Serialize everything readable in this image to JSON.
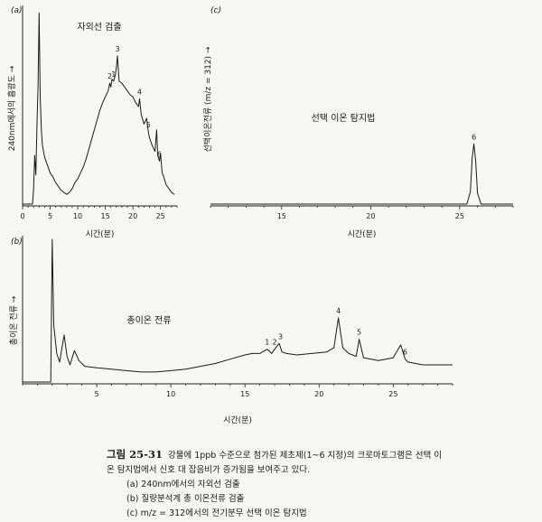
{
  "chart_data": [
    {
      "panel": "(a)",
      "type": "line",
      "title": "자외선 검출",
      "xlabel": "시간(분)",
      "ylabel": "240nm에서의 흡광도 →",
      "xlim": [
        0,
        28
      ],
      "xticks": [
        0,
        5,
        10,
        15,
        20,
        25
      ],
      "y_scale": "arbitrary",
      "grid": false,
      "x": [
        0,
        1.8,
        2.0,
        2.2,
        2.4,
        2.6,
        2.8,
        3.0,
        3.2,
        3.4,
        3.6,
        4.0,
        4.5,
        5.0,
        5.5,
        6.0,
        6.5,
        7.0,
        7.5,
        8.0,
        8.5,
        9.0,
        9.5,
        10.0,
        10.5,
        11.0,
        11.5,
        12.0,
        12.5,
        13.0,
        13.5,
        14.0,
        14.5,
        15.0,
        15.5,
        15.8,
        16.0,
        16.2,
        16.5,
        16.8,
        17.0,
        17.2,
        17.5,
        18.0,
        18.5,
        19.0,
        19.5,
        20.0,
        20.5,
        21.0,
        21.2,
        21.5,
        22.0,
        22.5,
        22.8,
        23.0,
        23.5,
        24.0,
        24.3,
        24.5,
        24.8,
        25.0,
        25.3,
        25.6,
        26.0,
        26.5,
        27.0,
        27.5
      ],
      "y": [
        0,
        0,
        8,
        25,
        15,
        40,
        60,
        98,
        55,
        38,
        30,
        24,
        20,
        16,
        14,
        11,
        9,
        7,
        6,
        5,
        6,
        8,
        11,
        13,
        16,
        19,
        23,
        28,
        33,
        38,
        43,
        48,
        52,
        55,
        58,
        62,
        60,
        64,
        63,
        66,
        70,
        76,
        63,
        62,
        60,
        58,
        56,
        55,
        52,
        50,
        54,
        46,
        41,
        44,
        37,
        34,
        30,
        27,
        38,
        25,
        22,
        26,
        16,
        14,
        10,
        8,
        6,
        5
      ],
      "peak_labels": [
        {
          "label": "1",
          "x": 16.5
        },
        {
          "label": "2",
          "x": 15.8
        },
        {
          "label": "3",
          "x": 17.2
        },
        {
          "label": "4",
          "x": 21.2
        },
        {
          "label": "5",
          "x": 22.8
        },
        {
          "label": "6",
          "x": 24.8
        }
      ]
    },
    {
      "panel": "(c)",
      "type": "line",
      "title": "선택 이온 탐지법",
      "xlabel": "시간(분)",
      "ylabel": "선택이온전류 (m/z = 312) →",
      "xlim": [
        11,
        28
      ],
      "xticks": [
        15,
        20,
        25
      ],
      "y_scale": "arbitrary",
      "grid": false,
      "x": [
        11,
        25.4,
        25.6,
        25.7,
        25.8,
        25.9,
        26.0,
        26.2,
        28
      ],
      "y": [
        0,
        0,
        20,
        75,
        98,
        70,
        18,
        0,
        0
      ],
      "peak_labels": [
        {
          "label": "6",
          "x": 25.8
        }
      ]
    },
    {
      "panel": "(b)",
      "type": "line",
      "title": "총이온 전류",
      "xlabel": "시간(분)",
      "ylabel": "총이온 전류 →",
      "xlim": [
        0,
        29
      ],
      "xticks": [
        5,
        10,
        15,
        20,
        25
      ],
      "y_scale": "arbitrary",
      "grid": false,
      "x": [
        0,
        1.9,
        2.0,
        2.1,
        2.3,
        2.5,
        2.8,
        3.0,
        3.2,
        3.5,
        3.8,
        4.2,
        5.0,
        6.0,
        7.0,
        8.0,
        9.0,
        10.0,
        11.0,
        12.0,
        13.0,
        14.0,
        15.0,
        15.5,
        16.0,
        16.5,
        16.8,
        17.0,
        17.3,
        17.5,
        17.8,
        18.5,
        19.5,
        20.5,
        21.0,
        21.3,
        21.6,
        22.0,
        22.5,
        22.7,
        23.0,
        24.0,
        25.0,
        25.5,
        25.8,
        26.0,
        26.5,
        27.0,
        28.0,
        29.0
      ],
      "y": [
        0,
        0,
        100,
        40,
        20,
        14,
        33,
        18,
        12,
        22,
        15,
        11,
        10,
        9,
        8,
        7,
        7,
        8,
        9,
        11,
        13,
        16,
        19,
        20,
        20,
        23,
        20,
        23,
        27,
        21,
        20,
        19,
        20,
        21,
        24,
        45,
        24,
        20,
        18,
        30,
        17,
        15,
        17,
        26,
        16,
        14,
        13,
        12,
        12,
        12
      ],
      "peak_labels": [
        {
          "label": "1",
          "x": 16.5
        },
        {
          "label": "2",
          "x": 17.0
        },
        {
          "label": "3",
          "x": 17.4
        },
        {
          "label": "4",
          "x": 21.3
        },
        {
          "label": "5",
          "x": 22.7
        },
        {
          "label": "6",
          "x": 25.8
        }
      ]
    }
  ],
  "caption": {
    "figure_number": "그림 25-31",
    "text_line1": "강물에 1ppb 수준으로 첨가된 제초제(1~6 지정)의 크로마토그램은 선택 이",
    "text_line2": "온 탐지법에서 신호 대 잡음비가 증가됨을 보여주고 있다.",
    "items": [
      "(a) 240nm에서의 자외선 검출",
      "(b) 질량분석계 총 이온전류 검출",
      "(c) m/z = 312에서의 전기분무 선택 이온 탐지법"
    ]
  }
}
